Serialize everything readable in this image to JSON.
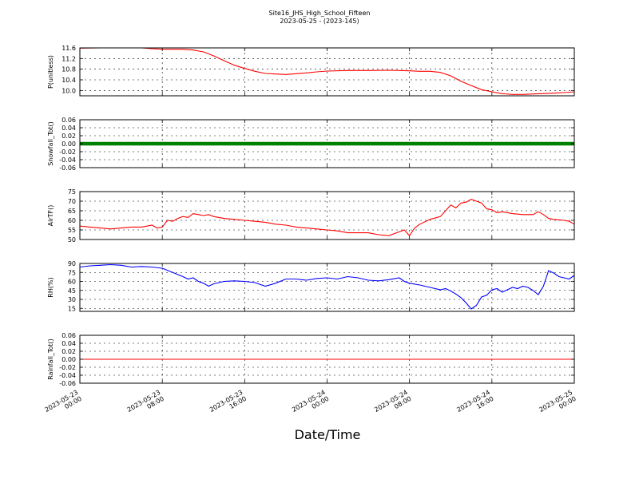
{
  "figure": {
    "title_line1": "Site16_JHS_High_School_Fifteen",
    "title_line2": "2023-05-25 - (2023-145)",
    "xlabel": "Date/Time",
    "x_ticks": [
      {
        "l1": "2023-05-23",
        "l2": "00:00",
        "h": 0
      },
      {
        "l1": "2023-05-23",
        "l2": "08:00",
        "h": 8
      },
      {
        "l1": "2023-05-23",
        "l2": "16:00",
        "h": 16
      },
      {
        "l1": "2023-05-24",
        "l2": "00:00",
        "h": 24
      },
      {
        "l1": "2023-05-24",
        "l2": "08:00",
        "h": 32
      },
      {
        "l1": "2023-05-24",
        "l2": "16:00",
        "h": 40
      },
      {
        "l1": "2023-05-25",
        "l2": "00:00",
        "h": 48
      }
    ]
  },
  "chart_data": [
    {
      "type": "line",
      "ylabel": "P(unitless)",
      "ylim": [
        9.8,
        11.6
      ],
      "yticks": [
        10.0,
        10.4,
        10.8,
        11.2,
        11.6
      ],
      "ytick_labels": [
        "10.0",
        "10.4",
        "10.8",
        "11.2",
        "11.6"
      ],
      "xlim_hours": [
        0,
        48
      ],
      "grid": true,
      "color": "#ff0000",
      "x_hours": [
        0,
        2,
        4,
        6,
        7,
        8,
        10,
        11,
        12,
        13,
        14,
        15,
        16,
        17,
        18,
        19,
        20,
        21,
        22,
        23,
        24,
        26,
        28,
        30,
        32,
        33,
        34,
        35,
        36,
        37,
        38,
        39,
        40,
        41,
        42,
        43,
        44,
        46,
        47,
        48
      ],
      "values": [
        11.59,
        11.6,
        11.6,
        11.6,
        11.57,
        11.55,
        11.55,
        11.52,
        11.45,
        11.3,
        11.12,
        10.95,
        10.83,
        10.72,
        10.64,
        10.62,
        10.6,
        10.63,
        10.66,
        10.7,
        10.73,
        10.75,
        10.75,
        10.76,
        10.74,
        10.72,
        10.72,
        10.68,
        10.55,
        10.35,
        10.18,
        10.03,
        9.95,
        9.88,
        9.85,
        9.85,
        9.87,
        9.9,
        9.92,
        9.95
      ]
    },
    {
      "type": "scatter",
      "ylabel": "Snowfall_Tot()",
      "ylim": [
        -0.06,
        0.06
      ],
      "yticks": [
        -0.06,
        -0.04,
        -0.02,
        0.0,
        0.02,
        0.04,
        0.06
      ],
      "ytick_labels": [
        "-0.06",
        "-0.04",
        "-0.02",
        "0.00",
        "0.02",
        "0.04",
        "0.06"
      ],
      "xlim_hours": [
        0,
        48
      ],
      "grid": true,
      "color": "#008000",
      "x_hours": [
        0,
        48
      ],
      "values": [
        0,
        0
      ]
    },
    {
      "type": "line",
      "ylabel": "AirTF()",
      "ylim": [
        50,
        75
      ],
      "yticks": [
        50,
        55,
        60,
        65,
        70,
        75
      ],
      "ytick_labels": [
        "50",
        "55",
        "60",
        "65",
        "70",
        "75"
      ],
      "xlim_hours": [
        0,
        48
      ],
      "grid": true,
      "color": "#ff0000",
      "x_hours": [
        0,
        1,
        2,
        3,
        4,
        5,
        6,
        7,
        7.5,
        8,
        8.5,
        9,
        9.5,
        10,
        10.5,
        11,
        11.5,
        12,
        12.5,
        13,
        13.5,
        14,
        15,
        16,
        17,
        18,
        19,
        20,
        21,
        22,
        23,
        24,
        25,
        26,
        27,
        28,
        29,
        30,
        31,
        31.5,
        32,
        32.5,
        33,
        34,
        35,
        35.5,
        36,
        36.5,
        37,
        37.5,
        38,
        38.5,
        39,
        39.5,
        40,
        40.5,
        41,
        41.5,
        42,
        43,
        44,
        44.5,
        45,
        45.5,
        46,
        47,
        47.5,
        48
      ],
      "values": [
        57,
        56.5,
        56,
        55.5,
        56,
        56.5,
        56.5,
        57.5,
        56,
        56.5,
        60,
        59.5,
        61,
        62,
        61.5,
        63.5,
        63,
        62.5,
        63,
        62,
        61.5,
        61,
        60.5,
        60,
        59.5,
        59,
        58,
        57.5,
        56.5,
        56,
        55.5,
        55,
        54.5,
        53.5,
        53.5,
        53.5,
        52.5,
        52,
        54,
        55,
        52,
        56,
        58,
        60.5,
        62,
        65,
        68,
        66.5,
        69,
        69.5,
        71,
        70,
        69,
        66,
        65.5,
        64,
        64.5,
        64,
        63.5,
        63,
        63,
        64.5,
        63,
        61,
        60.5,
        60,
        59.5,
        58
      ]
    },
    {
      "type": "line",
      "ylabel": "RH(%)",
      "ylim": [
        10,
        90
      ],
      "yticks": [
        15,
        30,
        45,
        60,
        75,
        90
      ],
      "ytick_labels": [
        "15",
        "30",
        "45",
        "60",
        "75",
        "90"
      ],
      "xlim_hours": [
        0,
        48
      ],
      "grid": true,
      "color": "#0000ff",
      "x_hours": [
        0,
        1,
        2,
        3,
        4,
        5,
        6,
        7,
        8,
        9,
        10,
        10.5,
        11,
        11.5,
        12,
        12.5,
        13,
        14,
        15,
        16,
        17,
        18,
        19,
        20,
        21,
        22,
        23,
        24,
        25,
        26,
        27,
        28,
        29,
        30,
        31,
        31.5,
        32,
        33,
        34,
        35,
        35.5,
        36,
        36.5,
        37,
        37.5,
        38,
        38.5,
        39,
        39.5,
        40,
        40.5,
        41,
        41.5,
        42,
        42.5,
        43,
        43.5,
        44,
        44.5,
        45,
        45.5,
        46,
        46.5,
        47,
        47.5,
        48
      ],
      "values": [
        84,
        86,
        87,
        88,
        87,
        84,
        85,
        84,
        82,
        75,
        68,
        64,
        66,
        60,
        57,
        52,
        56,
        60,
        61,
        60,
        58,
        52,
        57,
        64,
        64,
        62,
        65,
        66,
        64,
        68,
        66,
        62,
        61,
        63,
        66,
        60,
        57,
        54,
        50,
        46,
        48,
        44,
        39,
        33,
        24,
        14,
        20,
        34,
        37,
        46,
        48,
        42,
        46,
        50,
        48,
        52,
        50,
        45,
        38,
        52,
        78,
        74,
        68,
        66,
        64,
        70
      ]
    },
    {
      "type": "line",
      "ylabel": "Rainfall_Tot()",
      "ylim": [
        -0.06,
        0.06
      ],
      "yticks": [
        -0.06,
        -0.04,
        -0.02,
        0.0,
        0.02,
        0.04,
        0.06
      ],
      "ytick_labels": [
        "-0.06",
        "-0.04",
        "-0.02",
        "0.00",
        "0.02",
        "0.04",
        "0.06"
      ],
      "xlim_hours": [
        0,
        48
      ],
      "grid": true,
      "color": "#ff0000",
      "x_hours": [
        0,
        48
      ],
      "values": [
        0,
        0
      ]
    }
  ]
}
